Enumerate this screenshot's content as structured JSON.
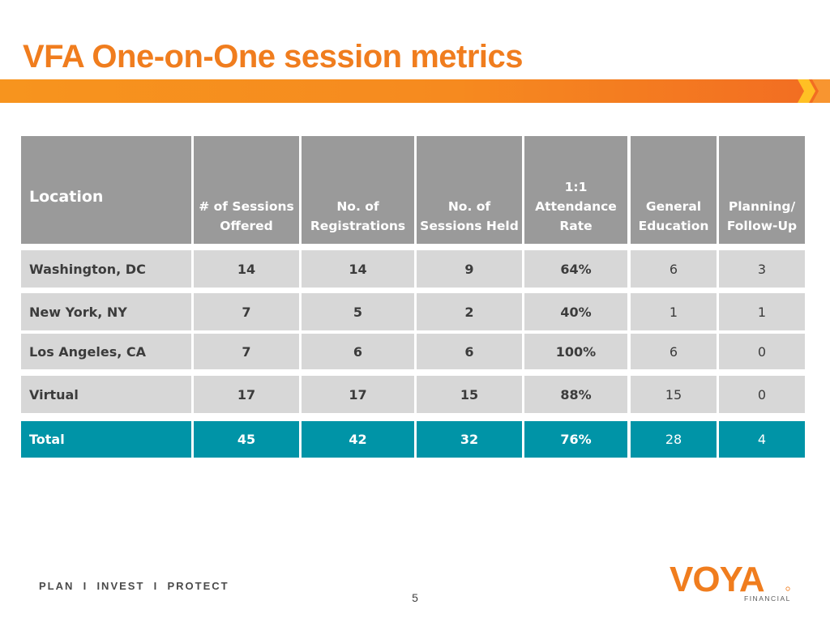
{
  "slide": {
    "title": "VFA One-on-One session metrics",
    "page_number": "5",
    "tagline": "PLAN  I  INVEST  I  PROTECT",
    "brand": {
      "name": "VOYA",
      "sub": "FINANCIAL",
      "color": "#f07d1e"
    }
  },
  "colors": {
    "header_bg": "#9a9a9a",
    "row_bg": "#d7d7d7",
    "total_bg": "#0094a7",
    "title": "#f07d1e"
  },
  "table": {
    "headers": [
      "Location",
      "# of Sessions\nOffered",
      "No. of\nRegistrations",
      "No. of\nSessions Held",
      "1:1\nAttendance\nRate",
      "General\nEducation",
      "Planning/\nFollow-Up"
    ],
    "rows": [
      [
        "Washington, DC",
        "14",
        "14",
        "9",
        "64%",
        "6",
        "3"
      ],
      [
        "New York, NY",
        "7",
        "5",
        "2",
        "40%",
        "1",
        "1"
      ],
      [
        "Los Angeles, CA",
        "7",
        "6",
        "6",
        "100%",
        "6",
        "0"
      ],
      [
        "Virtual",
        "17",
        "17",
        "15",
        "88%",
        "15",
        "0"
      ]
    ],
    "total": [
      "Total",
      "45",
      "42",
      "32",
      "76%",
      "28",
      "4"
    ]
  }
}
